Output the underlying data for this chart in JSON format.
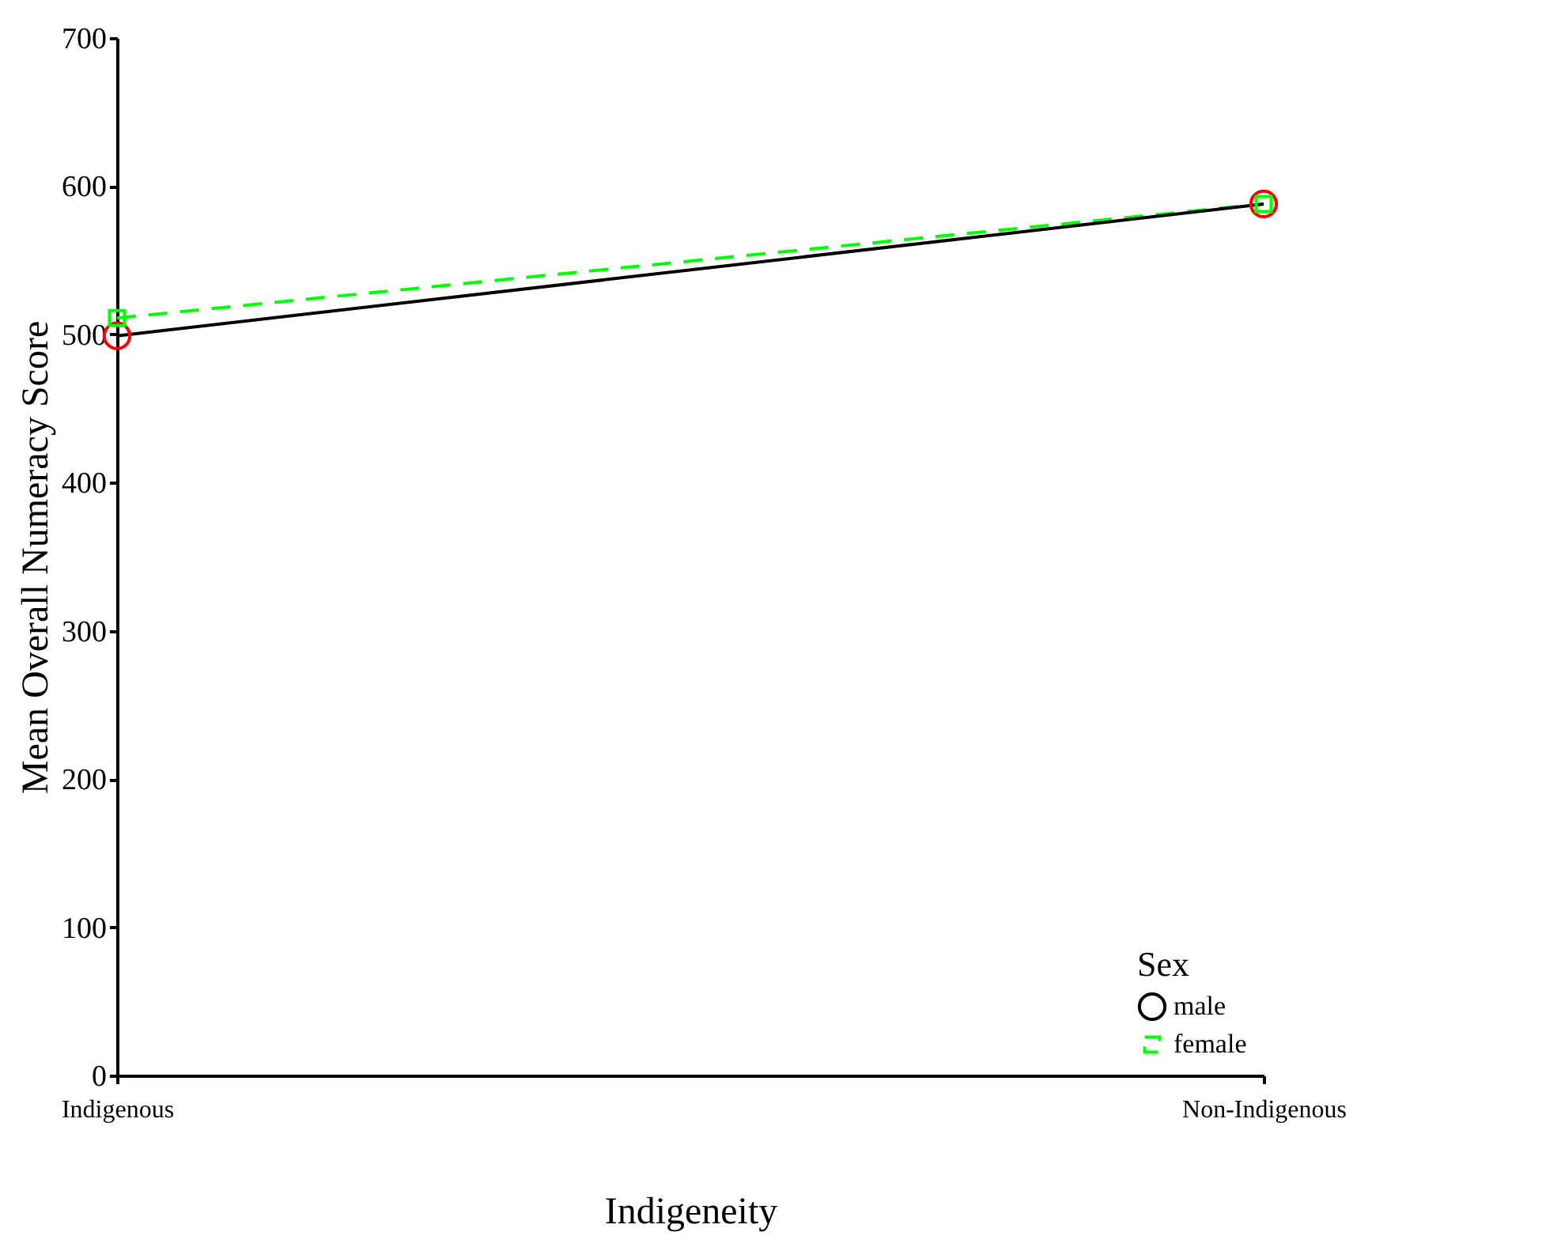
{
  "chart_data": {
    "type": "line",
    "xlabel": "Indigeneity",
    "ylabel": "Mean Overall Numeracy Score",
    "legend_title": "Sex",
    "categories": [
      "Indigenous",
      "Non-Indigenous"
    ],
    "series": [
      {
        "name": "male",
        "color": "#000000",
        "colors": [
          "#ff0000",
          "#ff0000"
        ],
        "marker": "circle",
        "line_style": "solid",
        "values": [
          499,
          588
        ]
      },
      {
        "name": "female",
        "color": "#00ff00",
        "colors": [
          "#00ff00",
          "#00ff00"
        ],
        "marker": "square",
        "line_style": "dashed",
        "values": [
          511,
          588
        ]
      }
    ],
    "ylim": [
      0,
      700
    ],
    "yticks": [
      0,
      100,
      200,
      300,
      400,
      500,
      600,
      700
    ],
    "grid": false,
    "legend": "bottom right"
  }
}
